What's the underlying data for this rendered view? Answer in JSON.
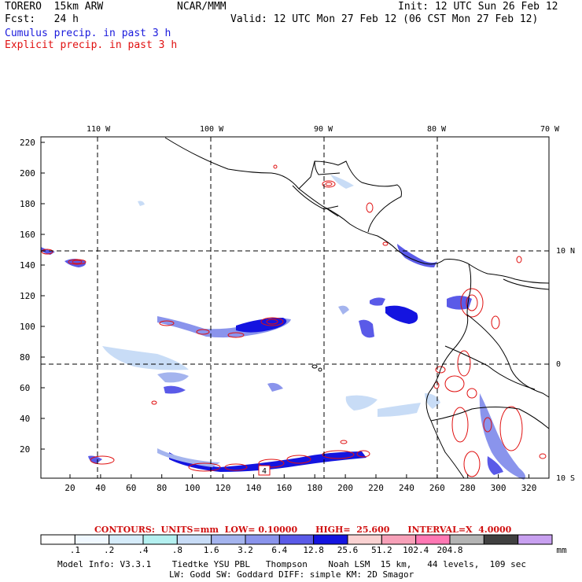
{
  "header": {
    "model": "TORERO  15km ARW",
    "org": "NCAR/MMM",
    "init": "Init: 12 UTC Sun 26 Feb 12",
    "fcst": "Fcst:   24 h",
    "valid": "Valid: 12 UTC Mon 27 Feb 12 (06 CST Mon 27 Feb 12)",
    "cumulus": "Cumulus precip. in past 3 h",
    "explicit": "Explicit precip. in past 3 h"
  },
  "map": {
    "lon_labels": [
      "110 W",
      "100 W",
      "90 W",
      "80 W",
      "70 W"
    ],
    "lat_labels": [
      "10 N",
      "0",
      "10 S"
    ],
    "y_ticks": [
      "220",
      "200",
      "180",
      "160",
      "140",
      "120",
      "100",
      "80",
      "60",
      "40",
      "20"
    ],
    "x_ticks": [
      "20",
      "40",
      "60",
      "80",
      "100",
      "120",
      "140",
      "160",
      "180",
      "200",
      "220",
      "240",
      "260",
      "280",
      "300",
      "320"
    ],
    "box_label": "4"
  },
  "colorbar": {
    "colors": [
      "#ffffff",
      "#f0f8ff",
      "#d6ecfa",
      "#b4f0f0",
      "#c8dcf6",
      "#a4b4ee",
      "#8a94ec",
      "#5a5ae8",
      "#1414e0",
      "#fad2d2",
      "#f7a0b8",
      "#ff78b4",
      "#b4b4b4",
      "#404040",
      "#c8a0f0"
    ],
    "labels": [
      ".1",
      ".2",
      ".4",
      ".8",
      "1.6",
      "3.2",
      "6.4",
      "12.8",
      "25.6",
      "51.2",
      "102.4",
      "204.8"
    ],
    "unit": "mm"
  },
  "contours": "CONTOURS:  UNITS=mm  LOW= 0.10000      HIGH=  25.600      INTERVAL=X  4.0000",
  "footer": {
    "line1": "Model Info: V3.3.1    Tiedtke YSU PBL   Thompson    Noah LSM  15 km,   44 levels,  109 sec",
    "line2": "LW: Godd SW: Goddard DIFF: simple KM: 2D Smagor"
  }
}
